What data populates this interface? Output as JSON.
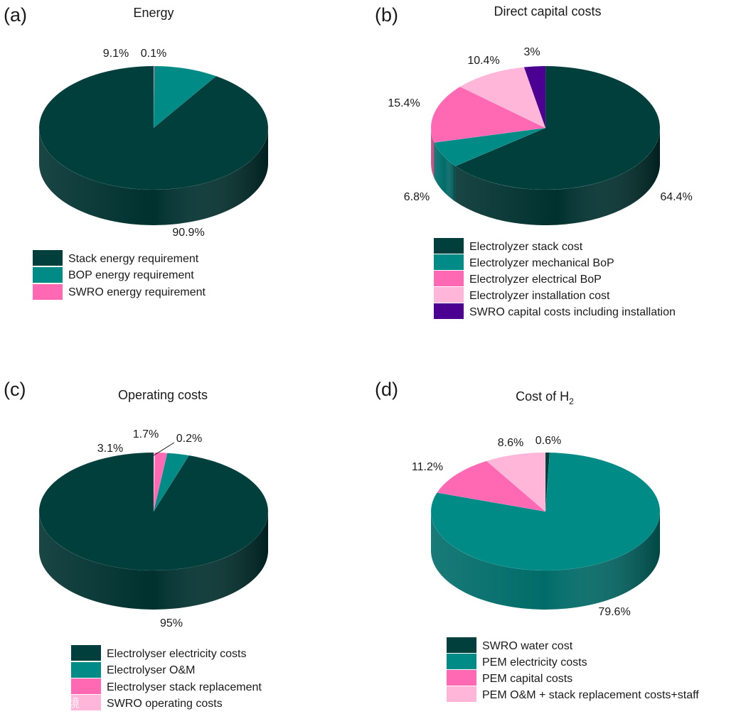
{
  "chart_data": [
    {
      "type": "pie",
      "panel_label": "(a)",
      "title": "Energy",
      "unit": "%",
      "slices": [
        {
          "label": "Stack energy requirement",
          "value": 90.9,
          "value_label": "90.9%",
          "color": "#003f3c"
        },
        {
          "label": "BOP energy requirement",
          "value": 9.1,
          "value_label": "9.1%",
          "color": "#008b87"
        },
        {
          "label": "SWRO energy requirement",
          "value": 0.1,
          "value_label": "0.1%",
          "color": "#ff69b4"
        }
      ]
    },
    {
      "type": "pie",
      "panel_label": "(b)",
      "title": "Direct capital costs",
      "unit": "%",
      "slices": [
        {
          "label": "Electrolyzer stack cost",
          "value": 64.4,
          "value_label": "64.4%",
          "color": "#003f3c"
        },
        {
          "label": "Electrolyzer mechanical BoP",
          "value": 6.8,
          "value_label": "6.8%",
          "color": "#008b87"
        },
        {
          "label": "Electrolyzer electrical BoP",
          "value": 15.4,
          "value_label": "15.4%",
          "color": "#ff69b4"
        },
        {
          "label": "Electrolyzer installation cost",
          "value": 10.4,
          "value_label": "10.4%",
          "color": "#ffb6d9"
        },
        {
          "label": "SWRO capital costs including installation",
          "value": 3,
          "value_label": "3%",
          "color": "#4b0091"
        }
      ]
    },
    {
      "type": "pie",
      "panel_label": "(c)",
      "title": "Operating costs",
      "unit": "%",
      "slices": [
        {
          "label": "Electrolyser electricity costs",
          "value": 95,
          "value_label": "95%",
          "color": "#003f3c"
        },
        {
          "label": "Electrolyser O&M",
          "value": 3.1,
          "value_label": "3.1%",
          "color": "#008b87"
        },
        {
          "label": "Electrolyser stack replacement",
          "value": 1.7,
          "value_label": "1.7%",
          "color": "#ff69b4"
        },
        {
          "label": "SWRO operating costs",
          "value": 0.2,
          "value_label": "0.2%",
          "color": "#ffb6d9"
        }
      ]
    },
    {
      "type": "pie",
      "panel_label": "(d)",
      "title": "Cost of H",
      "title_subscript": "2",
      "unit": "%",
      "slices": [
        {
          "label": "SWRO water cost",
          "value": 0.6,
          "value_label": "0.6%",
          "color": "#003f3c"
        },
        {
          "label": "PEM electricity costs",
          "value": 79.6,
          "value_label": "79.6%",
          "color": "#008b87"
        },
        {
          "label": "PEM capital costs",
          "value": 11.2,
          "value_label": "11.2%",
          "color": "#ff69b4"
        },
        {
          "label": "PEM O&M + stack replacement costs+staff",
          "value": 8.6,
          "value_label": "8.6%",
          "color": "#ffb6d9"
        }
      ]
    }
  ],
  "watermark": {
    "text": "大数跨境"
  }
}
